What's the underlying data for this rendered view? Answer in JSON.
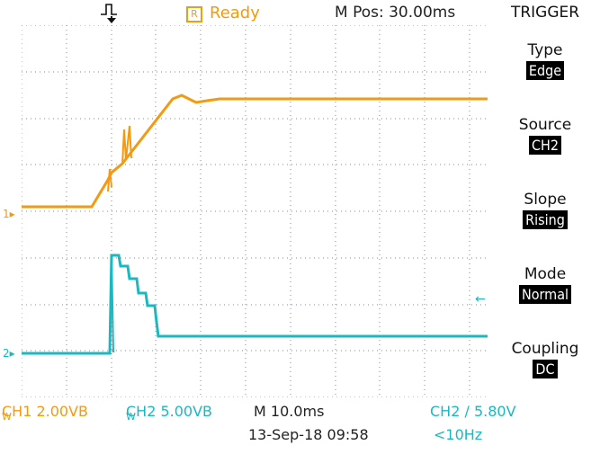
{
  "header": {
    "status": "Ready",
    "status_badge": "R",
    "m_pos": "M Pos: 30.00ms"
  },
  "panel": {
    "title": "TRIGGER",
    "items": [
      {
        "label": "Type",
        "value": "Edge"
      },
      {
        "label": "Source",
        "value": "CH2"
      },
      {
        "label": "Slope",
        "value": "Rising"
      },
      {
        "label": "Mode",
        "value": "Normal"
      },
      {
        "label": "Coupling",
        "value": "DC"
      }
    ]
  },
  "footer": {
    "ch1": "CH1  2.00VB",
    "ch1_sub": "W",
    "ch2": "CH2  5.00VB",
    "ch2_sub": "W",
    "timebase": "M 10.0ms",
    "trig": "CH2  ∕  5.80V",
    "date": "13-Sep-18 09:58",
    "freq": "<10Hz"
  },
  "markers": {
    "ch1": "1",
    "ch2": "2"
  },
  "colors": {
    "ch1": "#f39a10",
    "ch2": "#1cb8c0",
    "grid": "#7f8ba0",
    "background": "#ffffff"
  }
}
